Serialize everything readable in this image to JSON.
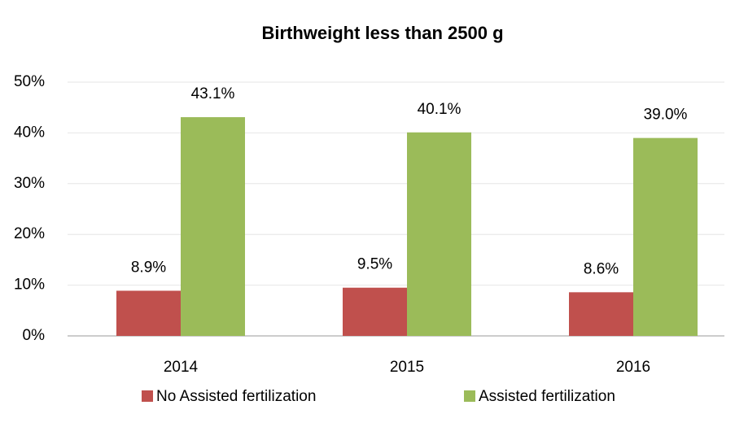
{
  "chart_data": {
    "type": "bar",
    "title": "Birthweight less than 2500 g",
    "categories": [
      "2014",
      "2015",
      "2016"
    ],
    "series": [
      {
        "name": "No Assisted fertilization",
        "color": "#c0504d",
        "values": [
          8.9,
          9.5,
          8.6
        ],
        "value_labels": [
          "8.9%",
          "9.5%",
          "8.6%"
        ]
      },
      {
        "name": "Assisted fertilization",
        "color": "#9bbb59",
        "values": [
          43.1,
          40.1,
          39.0
        ],
        "value_labels": [
          "43.1%",
          "40.1%",
          "39.0%"
        ]
      }
    ],
    "ylim": [
      0,
      50
    ],
    "yticks": [
      {
        "value": 0,
        "label": "0%"
      },
      {
        "value": 10,
        "label": "10%"
      },
      {
        "value": 20,
        "label": "20%"
      },
      {
        "value": 30,
        "label": "30%"
      },
      {
        "value": 40,
        "label": "40%"
      },
      {
        "value": 50,
        "label": "50%"
      }
    ],
    "grid": true,
    "legend": "bottom"
  }
}
